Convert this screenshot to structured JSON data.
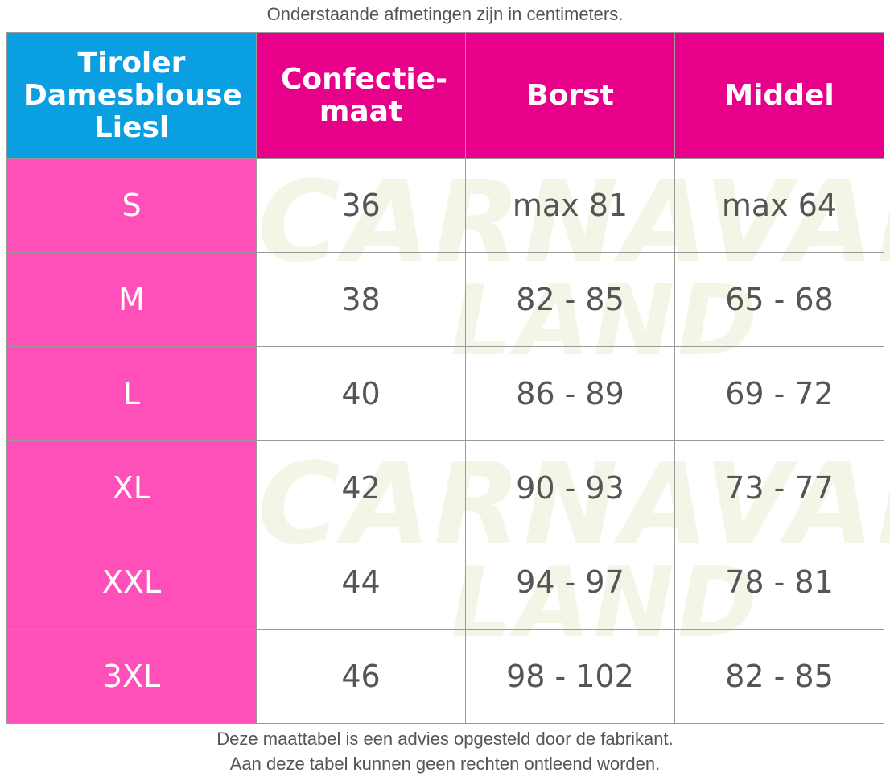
{
  "caption_top": "Onderstaande afmetingen zijn in centimeters.",
  "headers": [
    "Tiroler Damesblouse Liesl",
    "Confectie-maat",
    "Borst",
    "Middel"
  ],
  "rows": [
    {
      "size": "S",
      "confectie": "36",
      "borst": "max 81",
      "middel": "max 64"
    },
    {
      "size": "M",
      "confectie": "38",
      "borst": "82 - 85",
      "middel": "65 - 68"
    },
    {
      "size": "L",
      "confectie": "40",
      "borst": "86 - 89",
      "middel": "69 - 72"
    },
    {
      "size": "XL",
      "confectie": "42",
      "borst": "90 - 93",
      "middel": "73 - 77"
    },
    {
      "size": "XXL",
      "confectie": "44",
      "borst": "94 - 97",
      "middel": "78 - 81"
    },
    {
      "size": "3XL",
      "confectie": "46",
      "borst": "98 - 102",
      "middel": "82 - 85"
    }
  ],
  "footer": [
    "Deze maattabel is een advies opgesteld door de fabrikant.",
    "Aan deze tabel kunnen geen rechten ontleend worden."
  ],
  "watermark": [
    "CARNAVALS",
    "LAND"
  ],
  "colors": {
    "header_first": "#0a9fe0",
    "header": "#e6008a",
    "size_column": "#ff4fb8",
    "value_text": "#555555"
  }
}
